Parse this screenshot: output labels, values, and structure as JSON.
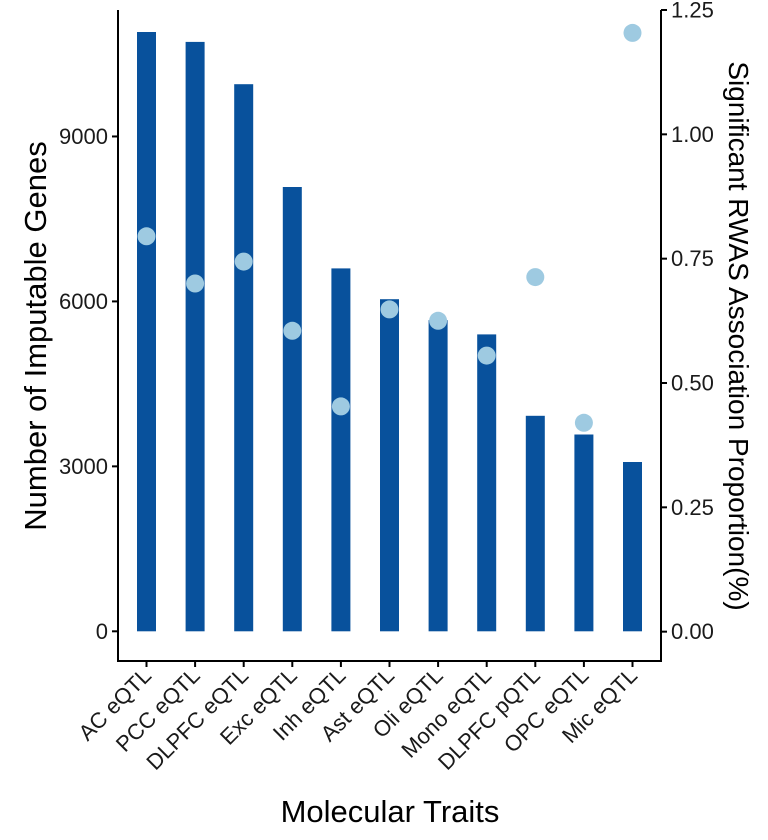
{
  "chart_data": {
    "type": "bar",
    "xlabel": "Molecular Traits",
    "ylabel": "Number of Imputable Genes",
    "y2label": "Significant RWAS Association Proportion(%)",
    "categories": [
      "AC eQTL",
      "PCC eQTL",
      "DLPFC eQTL",
      "Exc eQTL",
      "Inh eQTL",
      "Ast eQTL",
      "Oli eQTL",
      "Mono eQTL",
      "DLPFC pQTL",
      "OPC eQTL",
      "Mic eQTL"
    ],
    "series": [
      {
        "type": "bar",
        "axis": "left",
        "color": "#08519c",
        "values": [
          10900,
          10720,
          9950,
          8080,
          6600,
          6040,
          5660,
          5400,
          3920,
          3580,
          3080
        ]
      },
      {
        "type": "scatter",
        "axis": "right",
        "color": "#9ecae1",
        "values": [
          0.795,
          0.7,
          0.744,
          0.605,
          0.453,
          0.648,
          0.625,
          0.555,
          0.713,
          0.42,
          1.204
        ]
      }
    ],
    "y_ticks": [
      0,
      3000,
      6000,
      9000
    ],
    "y_tick_labels": [
      "0",
      "3000",
      "6000",
      "9000"
    ],
    "y2_ticks": [
      0,
      0.25,
      0.5,
      0.75,
      1.0,
      1.25
    ],
    "y2_tick_labels": [
      "0.00",
      "0.25",
      "0.50",
      "0.75",
      "1.00",
      "1.25"
    ],
    "ylim": [
      -540,
      11300
    ],
    "y2lim": [
      -0.059,
      1.25
    ],
    "grid": false,
    "legend": "none"
  }
}
